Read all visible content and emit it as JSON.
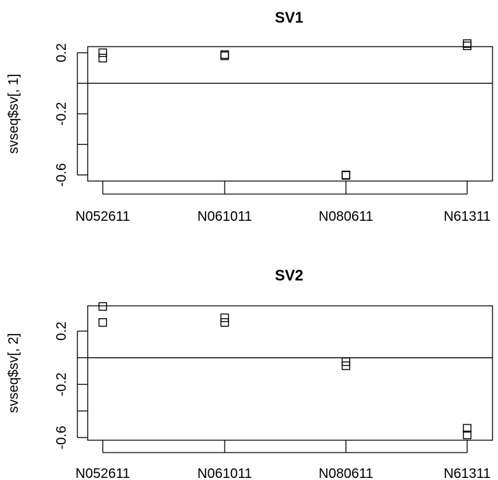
{
  "chart_data": [
    {
      "type": "scatter",
      "title": "SV1",
      "xlabel": "",
      "ylabel": "svseq$sv[, 1]",
      "categories": [
        "N052611",
        "N061011",
        "N080611",
        "N61311"
      ],
      "x_category_index": [
        0,
        0,
        1,
        1,
        2,
        2,
        3,
        3
      ],
      "y": [
        0.2,
        0.165,
        0.188,
        0.18,
        -0.603,
        -0.6,
        0.26,
        0.245
      ],
      "ylim": [
        -0.64,
        0.24
      ],
      "yticks": [
        -0.6,
        -0.4,
        -0.2,
        0.0,
        0.2
      ],
      "ytick_labels": [
        "-0.6",
        "",
        "-0.2",
        "",
        "0.2"
      ],
      "hline": 0,
      "grid": false
    },
    {
      "type": "scatter",
      "title": "SV2",
      "xlabel": "",
      "ylabel": "svseq$sv[, 2]",
      "categories": [
        "N052611",
        "N061011",
        "N080611",
        "N61311"
      ],
      "x_category_index": [
        0,
        0,
        1,
        1,
        2,
        2,
        3,
        3
      ],
      "y": [
        0.385,
        0.265,
        0.3,
        0.265,
        -0.03,
        -0.06,
        -0.53,
        -0.58
      ],
      "ylim": [
        -0.62,
        0.39
      ],
      "yticks": [
        -0.6,
        -0.4,
        -0.2,
        0.0,
        0.2
      ],
      "ytick_labels": [
        "-0.6",
        "",
        "-0.2",
        "",
        "0.2"
      ],
      "hline": 0,
      "grid": false
    }
  ]
}
